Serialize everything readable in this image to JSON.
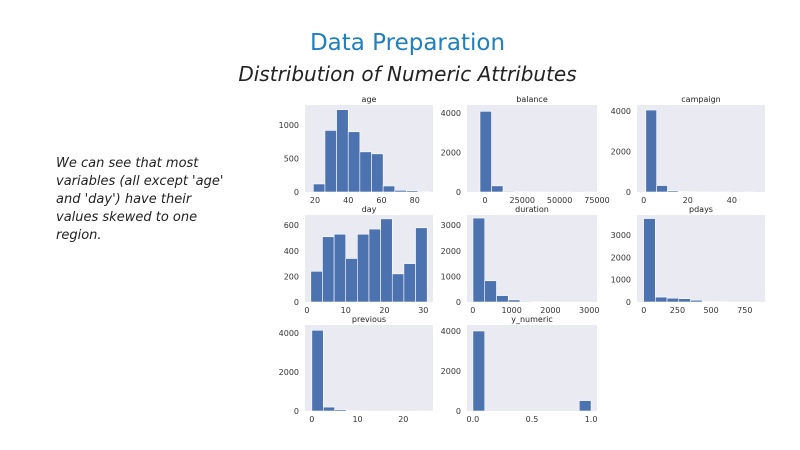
{
  "slide": {
    "title": "Data Preparation",
    "subtitle": "Distribution of Numeric Attributes",
    "note": "We can see that most variables (all except 'age' and 'day') have their values skewed to one region."
  },
  "colors": {
    "bar": "#4c72b0",
    "plot_bg": "#eaeaf2",
    "title": "#1f7fbf"
  },
  "chart_data": [
    {
      "type": "bar",
      "title": "age",
      "xlabel": "",
      "ylabel": "",
      "xlim": [
        14,
        91
      ],
      "ylim": [
        0,
        1300
      ],
      "xticks": [
        20,
        40,
        60,
        80
      ],
      "yticks": [
        0,
        500,
        1000
      ],
      "bins": [
        [
          19,
          26
        ],
        [
          26,
          33
        ],
        [
          33,
          40
        ],
        [
          40,
          47
        ],
        [
          47,
          54
        ],
        [
          54,
          61
        ],
        [
          61,
          68
        ],
        [
          68,
          75
        ],
        [
          75,
          82
        ],
        [
          82,
          89
        ]
      ],
      "values": [
        120,
        920,
        1230,
        900,
        600,
        570,
        90,
        25,
        20,
        10
      ]
    },
    {
      "type": "bar",
      "title": "balance",
      "xlabel": "",
      "ylabel": "",
      "xlim": [
        -12000,
        75000
      ],
      "ylim": [
        0,
        4400
      ],
      "xticks": [
        0,
        25000,
        50000,
        75000
      ],
      "yticks": [
        0,
        2000,
        4000
      ],
      "bins": [
        [
          -3300,
          4400
        ],
        [
          4400,
          12100
        ],
        [
          12100,
          19800
        ],
        [
          19800,
          27500
        ],
        [
          27500,
          35200
        ],
        [
          35200,
          42900
        ],
        [
          42900,
          50600
        ],
        [
          50600,
          58300
        ],
        [
          58300,
          66000
        ],
        [
          66000,
          73700
        ]
      ],
      "values": [
        4080,
        310,
        40,
        15,
        5,
        3,
        2,
        1,
        0,
        1
      ]
    },
    {
      "type": "bar",
      "title": "campaign",
      "xlabel": "",
      "ylabel": "",
      "xlim": [
        -3,
        55
      ],
      "ylim": [
        0,
        4300
      ],
      "xticks": [
        0,
        20,
        40
      ],
      "yticks": [
        0,
        2000,
        4000
      ],
      "bins": [
        [
          1,
          5.9
        ],
        [
          5.9,
          10.8
        ],
        [
          10.8,
          15.7
        ],
        [
          15.7,
          20.6
        ],
        [
          20.6,
          25.5
        ],
        [
          25.5,
          30.4
        ],
        [
          30.4,
          35.3
        ],
        [
          35.3,
          40.2
        ],
        [
          40.2,
          45.1
        ],
        [
          45.1,
          50
        ]
      ],
      "values": [
        4050,
        320,
        60,
        20,
        10,
        5,
        2,
        1,
        0,
        1
      ]
    },
    {
      "type": "bar",
      "title": "day",
      "xlabel": "",
      "ylabel": "",
      "xlim": [
        -0.5,
        32.5
      ],
      "ylim": [
        0,
        680
      ],
      "xticks": [
        0,
        10,
        20,
        30
      ],
      "yticks": [
        0,
        200,
        400,
        600
      ],
      "bins": [
        [
          1,
          4
        ],
        [
          4,
          7
        ],
        [
          7,
          10
        ],
        [
          10,
          13
        ],
        [
          13,
          16
        ],
        [
          16,
          19
        ],
        [
          19,
          22
        ],
        [
          22,
          25
        ],
        [
          25,
          28
        ],
        [
          28,
          31
        ]
      ],
      "values": [
        240,
        510,
        530,
        340,
        530,
        570,
        650,
        220,
        300,
        580
      ]
    },
    {
      "type": "bar",
      "title": "duration",
      "xlabel": "",
      "ylabel": "",
      "xlim": [
        -150,
        3200
      ],
      "ylim": [
        0,
        3400
      ],
      "xticks": [
        0,
        1000,
        2000,
        3000
      ],
      "yticks": [
        0,
        1000,
        2000,
        3000
      ],
      "bins": [
        [
          4,
          307
        ],
        [
          307,
          610
        ],
        [
          610,
          913
        ],
        [
          913,
          1216
        ],
        [
          1216,
          1519
        ],
        [
          1519,
          1822
        ],
        [
          1822,
          2125
        ],
        [
          2125,
          2428
        ],
        [
          2428,
          2731
        ],
        [
          2731,
          3034
        ]
      ],
      "values": [
        3280,
        830,
        250,
        80,
        30,
        10,
        5,
        2,
        1,
        1
      ]
    },
    {
      "type": "bar",
      "title": "pdays",
      "xlabel": "",
      "ylabel": "",
      "xlim": [
        -50,
        900
      ],
      "ylim": [
        0,
        3900
      ],
      "xticks": [
        0,
        250,
        500,
        750
      ],
      "yticks": [
        0,
        1000,
        2000,
        3000
      ],
      "bins": [
        [
          -1,
          86
        ],
        [
          86,
          173
        ],
        [
          173,
          260
        ],
        [
          260,
          347
        ],
        [
          347,
          434
        ],
        [
          434,
          521
        ],
        [
          521,
          608
        ],
        [
          608,
          695
        ],
        [
          695,
          782
        ],
        [
          782,
          871
        ]
      ],
      "values": [
        3740,
        220,
        170,
        150,
        80,
        20,
        10,
        5,
        2,
        1
      ]
    },
    {
      "type": "bar",
      "title": "previous",
      "xlabel": "",
      "ylabel": "",
      "xlim": [
        -1.5,
        26.5
      ],
      "ylim": [
        0,
        4400
      ],
      "xticks": [
        0,
        10,
        20
      ],
      "yticks": [
        0,
        2000,
        4000
      ],
      "bins": [
        [
          0,
          2.5
        ],
        [
          2.5,
          5
        ],
        [
          5,
          7.5
        ],
        [
          7.5,
          10
        ],
        [
          10,
          12.5
        ],
        [
          12.5,
          15
        ],
        [
          15,
          17.5
        ],
        [
          17.5,
          20
        ],
        [
          20,
          22.5
        ],
        [
          22.5,
          25
        ]
      ],
      "values": [
        4130,
        200,
        70,
        20,
        8,
        4,
        2,
        1,
        0,
        1
      ]
    },
    {
      "type": "bar",
      "title": "y_numeric",
      "xlabel": "",
      "ylabel": "",
      "xlim": [
        -0.05,
        1.05
      ],
      "ylim": [
        0,
        4300
      ],
      "xticks": [
        0.0,
        0.5,
        1.0
      ],
      "yticks": [
        0,
        2000,
        4000
      ],
      "bins": [
        [
          0,
          0.1
        ],
        [
          0.1,
          0.2
        ],
        [
          0.2,
          0.3
        ],
        [
          0.3,
          0.4
        ],
        [
          0.4,
          0.5
        ],
        [
          0.5,
          0.6
        ],
        [
          0.6,
          0.7
        ],
        [
          0.7,
          0.8
        ],
        [
          0.8,
          0.9
        ],
        [
          0.9,
          1.0
        ]
      ],
      "values": [
        4000,
        0,
        0,
        0,
        0,
        0,
        0,
        0,
        0,
        520
      ]
    }
  ]
}
